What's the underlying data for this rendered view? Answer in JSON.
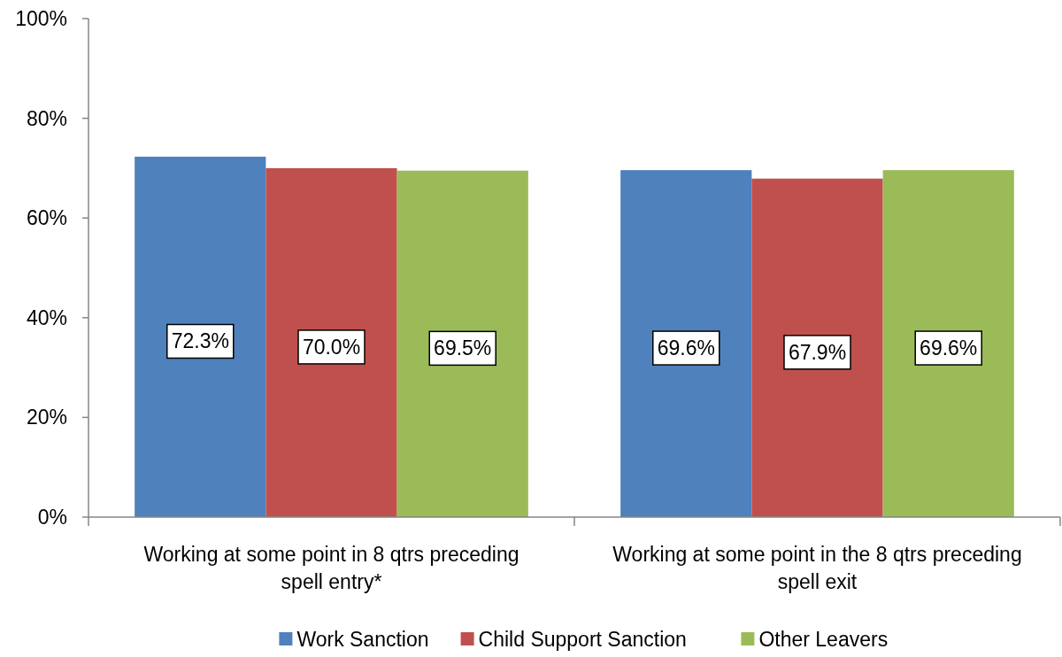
{
  "chart_data": {
    "type": "bar",
    "categories": [
      "Working at some point in 8 qtrs preceding spell entry*",
      "Working at some point in the 8 qtrs preceding spell exit"
    ],
    "series": [
      {
        "name": "Work Sanction",
        "color": "#4f81bd",
        "values": [
          72.3,
          69.6
        ],
        "value_labels": [
          "72.3%",
          "69.6%"
        ]
      },
      {
        "name": "Child Support Sanction",
        "color": "#c0504d",
        "values": [
          70.0,
          67.9
        ],
        "value_labels": [
          "70.0%",
          "67.9%"
        ]
      },
      {
        "name": "Other Leavers",
        "color": "#9bbb59",
        "values": [
          69.5,
          69.6
        ],
        "value_labels": [
          "69.5%",
          "69.6%"
        ]
      }
    ],
    "ylim": [
      0,
      100
    ],
    "yticks": [
      {
        "value": 0,
        "label": "0%"
      },
      {
        "value": 20,
        "label": "20%"
      },
      {
        "value": 40,
        "label": "40%"
      },
      {
        "value": 60,
        "label": "60%"
      },
      {
        "value": 80,
        "label": "80%"
      },
      {
        "value": 100,
        "label": "100%"
      }
    ],
    "grid": false,
    "legend": "bottom"
  }
}
